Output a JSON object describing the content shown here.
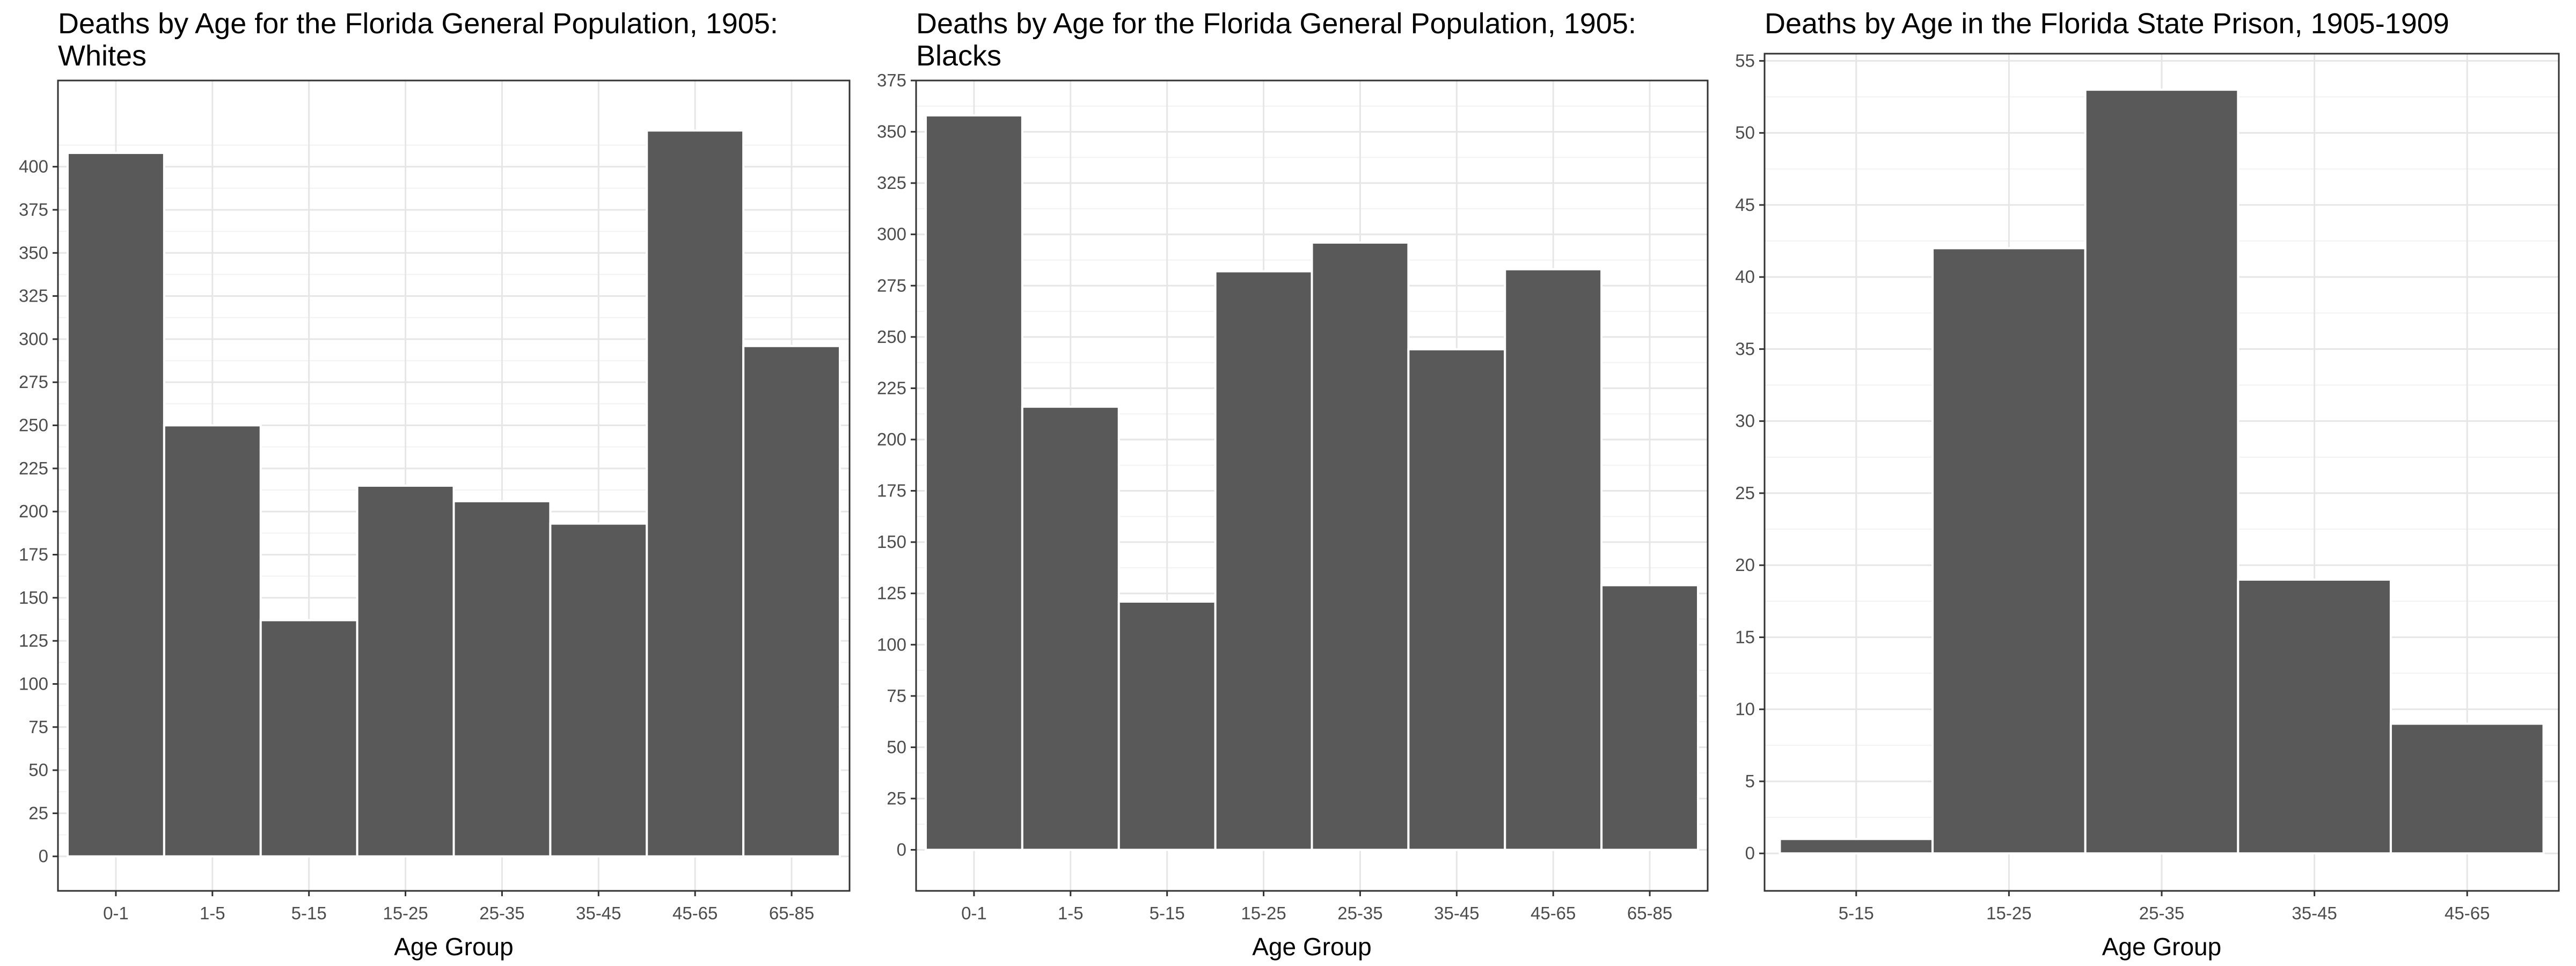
{
  "chart_data": [
    {
      "type": "bar",
      "title": "Deaths by Age for the Florida General Population, 1905:\nWhites",
      "xlabel": "Age Group",
      "ylabel": "",
      "categories": [
        "0-1",
        "1-5",
        "5-15",
        "15-25",
        "25-35",
        "35-45",
        "45-65",
        "65-85"
      ],
      "values": [
        408,
        250,
        137,
        215,
        206,
        193,
        421,
        296
      ],
      "ylim": [
        -20,
        450
      ],
      "yticks": [
        0,
        25,
        50,
        75,
        100,
        125,
        150,
        175,
        200,
        225,
        250,
        275,
        300,
        325,
        350,
        375,
        400
      ],
      "grid": true,
      "bar_color": "#595959"
    },
    {
      "type": "bar",
      "title": "Deaths by Age for the Florida General Population, 1905:\nBlacks",
      "xlabel": "Age Group",
      "ylabel": "",
      "categories": [
        "0-1",
        "1-5",
        "5-15",
        "15-25",
        "25-35",
        "35-45",
        "45-65",
        "65-85"
      ],
      "values": [
        358,
        216,
        121,
        282,
        296,
        244,
        283,
        129
      ],
      "ylim": [
        -20,
        375
      ],
      "yticks": [
        0,
        25,
        50,
        75,
        100,
        125,
        150,
        175,
        200,
        225,
        250,
        275,
        300,
        325,
        350,
        375
      ],
      "grid": true,
      "bar_color": "#595959"
    },
    {
      "type": "bar",
      "title": "Deaths by Age in the Florida State Prison, 1905-1909",
      "xlabel": "Age Group",
      "ylabel": "",
      "categories": [
        "5-15",
        "15-25",
        "25-35",
        "35-45",
        "45-65"
      ],
      "values": [
        1,
        42,
        53,
        19,
        9
      ],
      "ylim": [
        -2.6,
        55.5
      ],
      "yticks": [
        0,
        5,
        10,
        15,
        20,
        25,
        30,
        35,
        40,
        45,
        50,
        55
      ],
      "grid": true,
      "bar_color": "#595959"
    }
  ]
}
